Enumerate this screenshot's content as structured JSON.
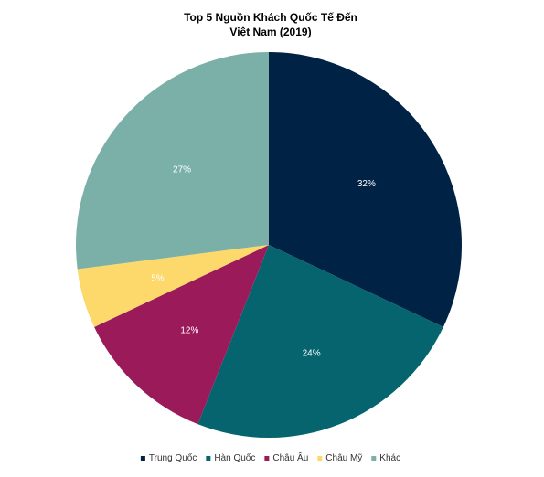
{
  "chart_data": {
    "type": "pie",
    "title": [
      "Top 5 Nguồn Khách Quốc Tế Đến",
      "Việt Nam (2019)"
    ],
    "categories": [
      "Trung Quốc",
      "Hàn Quốc",
      "Châu Âu",
      "Châu Mỹ",
      "Khác"
    ],
    "values": [
      32,
      24,
      12,
      5,
      27
    ],
    "data_labels": [
      "32%",
      "24%",
      "12%",
      "5%",
      "27%"
    ],
    "colors": [
      "#002345",
      "#05646e",
      "#9b1b5a",
      "#fdd86a",
      "#7bb0a8"
    ],
    "label_colors": [
      "#ffffff",
      "#ffffff",
      "#ffffff",
      "#ffffff",
      "#ffffff"
    ],
    "legend_position": "bottom",
    "start_angle": "12 o'clock",
    "direction": "clockwise"
  }
}
